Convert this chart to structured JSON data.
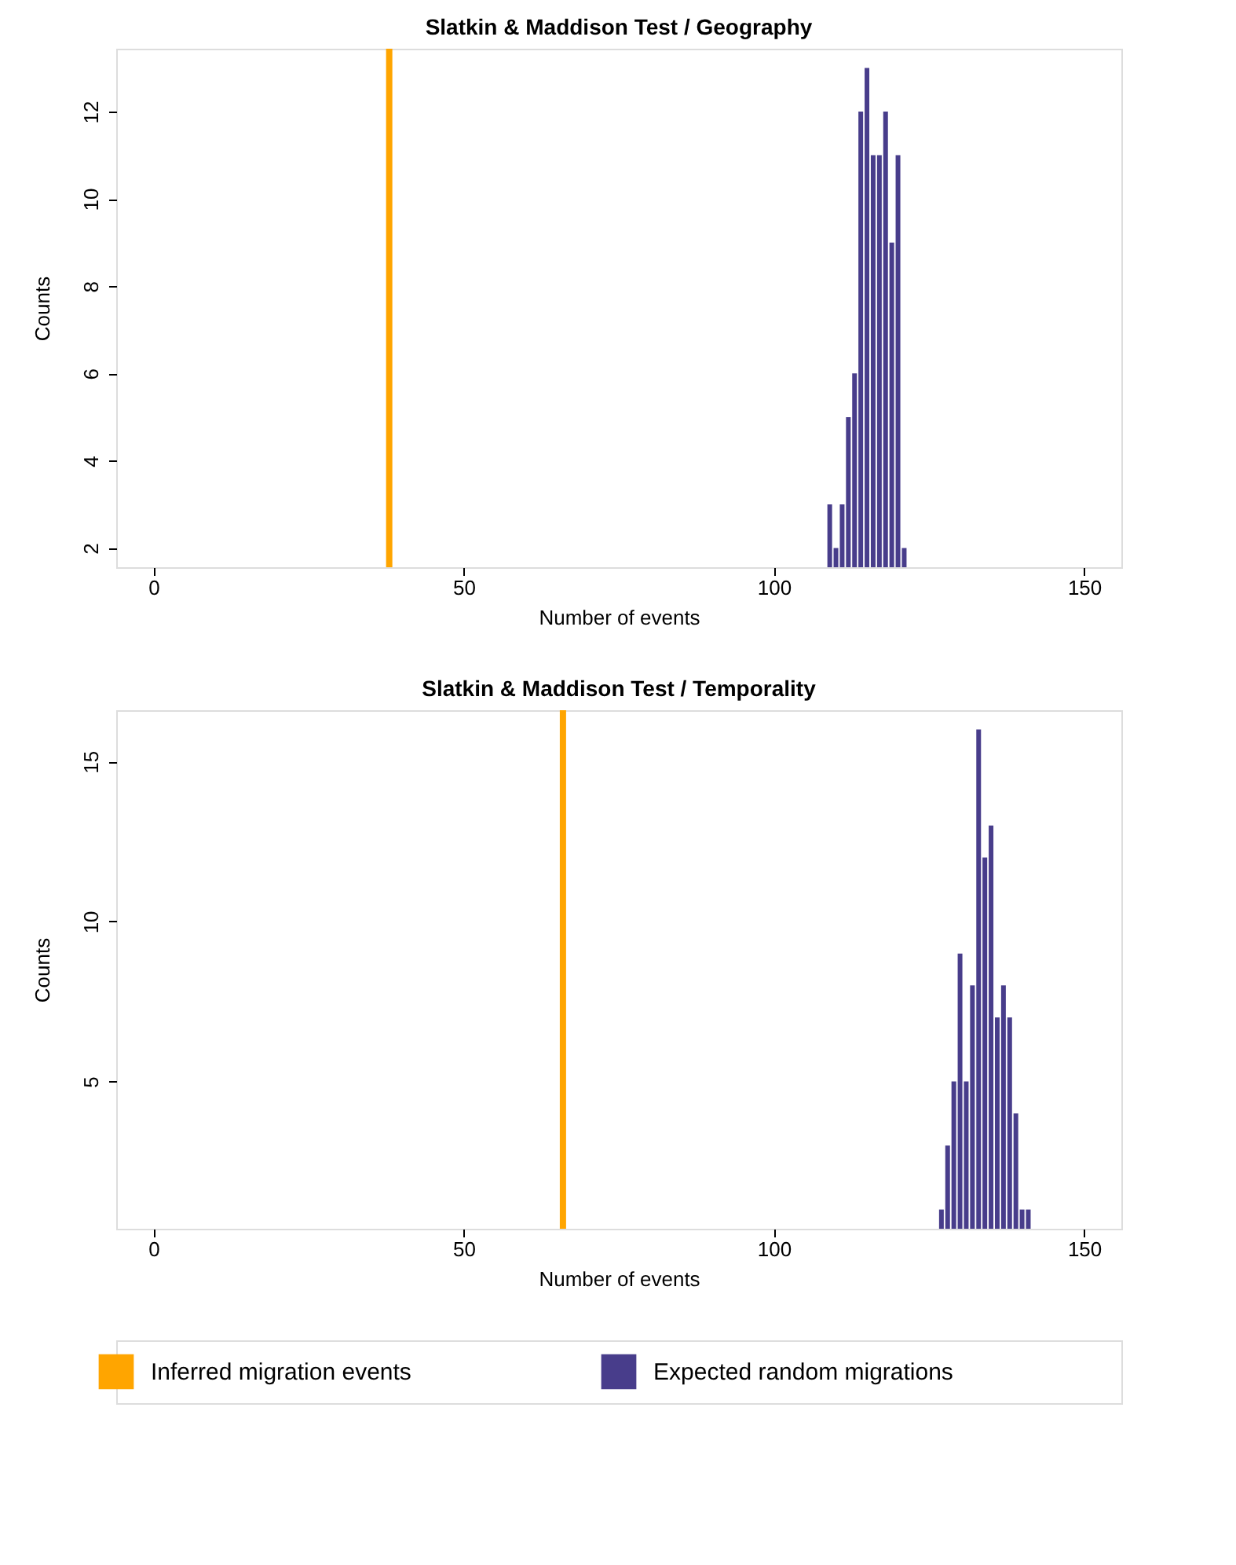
{
  "chart_data": [
    {
      "type": "bar",
      "title": "Slatkin & Maddison Test / Geography",
      "xlabel": "Number of events",
      "ylabel": "Counts",
      "x": [
        109,
        110,
        111,
        112,
        113,
        114,
        115,
        116,
        117,
        118,
        119,
        120,
        121
      ],
      "series": [
        {
          "color": "#483d8b",
          "values": [
            3,
            2,
            3,
            5,
            6,
            12,
            13,
            11,
            11,
            12,
            9,
            11,
            2
          ]
        }
      ],
      "xlim": [
        -6,
        156
      ],
      "xticks": [
        0,
        50,
        100,
        150
      ],
      "ylim": [
        1.56,
        13.44
      ],
      "yticks": [
        2,
        4,
        6,
        8,
        10,
        12
      ],
      "ref_lines": [
        {
          "axis": "x",
          "value": 38,
          "color": "#ffa500"
        }
      ],
      "grid": false,
      "legend": false
    },
    {
      "type": "bar",
      "title": "Slatkin & Maddison Test / Temporality",
      "xlabel": "Number of events",
      "ylabel": "Counts",
      "x": [
        127,
        128,
        129,
        130,
        131,
        132,
        133,
        134,
        135,
        136,
        137,
        138,
        139,
        140,
        141
      ],
      "series": [
        {
          "name": "Expected random migrations",
          "color": "#483d8b",
          "values": [
            1,
            3,
            5,
            9,
            5,
            8,
            16,
            12,
            13,
            7,
            8,
            7,
            4,
            1,
            1
          ]
        }
      ],
      "xlim": [
        -6,
        156
      ],
      "xticks": [
        0,
        50,
        100,
        150
      ],
      "ylim": [
        0.4,
        16.6
      ],
      "yticks": [
        5,
        10,
        15
      ],
      "ref_lines": [
        {
          "axis": "x",
          "value": 66,
          "color": "#ffa500",
          "label": "Inferred migration events"
        }
      ],
      "grid": false,
      "legend": "bottom"
    }
  ]
}
